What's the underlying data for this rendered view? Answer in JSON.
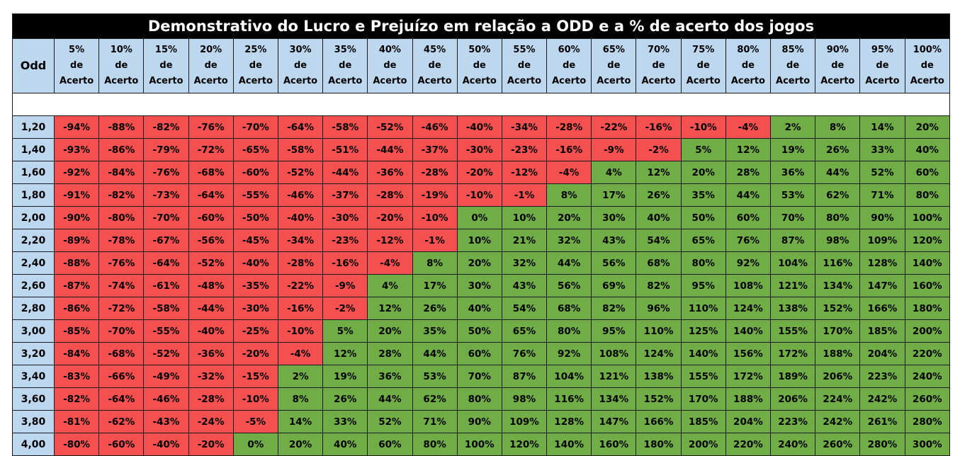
{
  "chart_data": {
    "type": "table",
    "title": "Demonstrativo do Lucro e Prejuízo em relação a ODD e a % de acerto dos jogos",
    "row_header_label": "Odd",
    "column_header_word_1": "de",
    "column_header_word_2": "Acerto",
    "columns": [
      "5%",
      "10%",
      "15%",
      "20%",
      "25%",
      "30%",
      "35%",
      "40%",
      "45%",
      "50%",
      "55%",
      "60%",
      "65%",
      "70%",
      "75%",
      "80%",
      "85%",
      "90%",
      "95%",
      "100%"
    ],
    "rows": [
      {
        "odd": "1,20",
        "values": [
          "-94%",
          "-88%",
          "-82%",
          "-76%",
          "-70%",
          "-64%",
          "-58%",
          "-52%",
          "-46%",
          "-40%",
          "-34%",
          "-28%",
          "-22%",
          "-16%",
          "-10%",
          "-4%",
          "2%",
          "8%",
          "14%",
          "20%"
        ]
      },
      {
        "odd": "1,40",
        "values": [
          "-93%",
          "-86%",
          "-79%",
          "-72%",
          "-65%",
          "-58%",
          "-51%",
          "-44%",
          "-37%",
          "-30%",
          "-23%",
          "-16%",
          "-9%",
          "-2%",
          "5%",
          "12%",
          "19%",
          "26%",
          "33%",
          "40%"
        ]
      },
      {
        "odd": "1,60",
        "values": [
          "-92%",
          "-84%",
          "-76%",
          "-68%",
          "-60%",
          "-52%",
          "-44%",
          "-36%",
          "-28%",
          "-20%",
          "-12%",
          "-4%",
          "4%",
          "12%",
          "20%",
          "28%",
          "36%",
          "44%",
          "52%",
          "60%"
        ]
      },
      {
        "odd": "1,80",
        "values": [
          "-91%",
          "-82%",
          "-73%",
          "-64%",
          "-55%",
          "-46%",
          "-37%",
          "-28%",
          "-19%",
          "-10%",
          "-1%",
          "8%",
          "17%",
          "26%",
          "35%",
          "44%",
          "53%",
          "62%",
          "71%",
          "80%"
        ]
      },
      {
        "odd": "2,00",
        "values": [
          "-90%",
          "-80%",
          "-70%",
          "-60%",
          "-50%",
          "-40%",
          "-30%",
          "-20%",
          "-10%",
          "0%",
          "10%",
          "20%",
          "30%",
          "40%",
          "50%",
          "60%",
          "70%",
          "80%",
          "90%",
          "100%"
        ]
      },
      {
        "odd": "2,20",
        "values": [
          "-89%",
          "-78%",
          "-67%",
          "-56%",
          "-45%",
          "-34%",
          "-23%",
          "-12%",
          "-1%",
          "10%",
          "21%",
          "32%",
          "43%",
          "54%",
          "65%",
          "76%",
          "87%",
          "98%",
          "109%",
          "120%"
        ]
      },
      {
        "odd": "2,40",
        "values": [
          "-88%",
          "-76%",
          "-64%",
          "-52%",
          "-40%",
          "-28%",
          "-16%",
          "-4%",
          "8%",
          "20%",
          "32%",
          "44%",
          "56%",
          "68%",
          "80%",
          "92%",
          "104%",
          "116%",
          "128%",
          "140%"
        ]
      },
      {
        "odd": "2,60",
        "values": [
          "-87%",
          "-74%",
          "-61%",
          "-48%",
          "-35%",
          "-22%",
          "-9%",
          "4%",
          "17%",
          "30%",
          "43%",
          "56%",
          "69%",
          "82%",
          "95%",
          "108%",
          "121%",
          "134%",
          "147%",
          "160%"
        ]
      },
      {
        "odd": "2,80",
        "values": [
          "-86%",
          "-72%",
          "-58%",
          "-44%",
          "-30%",
          "-16%",
          "-2%",
          "12%",
          "26%",
          "40%",
          "54%",
          "68%",
          "82%",
          "96%",
          "110%",
          "124%",
          "138%",
          "152%",
          "166%",
          "180%"
        ]
      },
      {
        "odd": "3,00",
        "values": [
          "-85%",
          "-70%",
          "-55%",
          "-40%",
          "-25%",
          "-10%",
          "5%",
          "20%",
          "35%",
          "50%",
          "65%",
          "80%",
          "95%",
          "110%",
          "125%",
          "140%",
          "155%",
          "170%",
          "185%",
          "200%"
        ]
      },
      {
        "odd": "3,20",
        "values": [
          "-84%",
          "-68%",
          "-52%",
          "-36%",
          "-20%",
          "-4%",
          "12%",
          "28%",
          "44%",
          "60%",
          "76%",
          "92%",
          "108%",
          "124%",
          "140%",
          "156%",
          "172%",
          "188%",
          "204%",
          "220%"
        ]
      },
      {
        "odd": "3,40",
        "values": [
          "-83%",
          "-66%",
          "-49%",
          "-32%",
          "-15%",
          "2%",
          "19%",
          "36%",
          "53%",
          "70%",
          "87%",
          "104%",
          "121%",
          "138%",
          "155%",
          "172%",
          "189%",
          "206%",
          "223%",
          "240%"
        ]
      },
      {
        "odd": "3,60",
        "values": [
          "-82%",
          "-64%",
          "-46%",
          "-28%",
          "-10%",
          "8%",
          "26%",
          "44%",
          "62%",
          "80%",
          "98%",
          "116%",
          "134%",
          "152%",
          "170%",
          "188%",
          "206%",
          "224%",
          "242%",
          "260%"
        ]
      },
      {
        "odd": "3,80",
        "values": [
          "-81%",
          "-62%",
          "-43%",
          "-24%",
          "-5%",
          "14%",
          "33%",
          "52%",
          "71%",
          "90%",
          "109%",
          "128%",
          "147%",
          "166%",
          "185%",
          "204%",
          "223%",
          "242%",
          "261%",
          "280%"
        ]
      },
      {
        "odd": "4,00",
        "values": [
          "-80%",
          "-60%",
          "-40%",
          "-20%",
          "0%",
          "20%",
          "40%",
          "60%",
          "80%",
          "100%",
          "120%",
          "140%",
          "160%",
          "180%",
          "200%",
          "220%",
          "240%",
          "260%",
          "280%",
          "300%"
        ]
      }
    ]
  },
  "colors": {
    "title_background": "#000000",
    "header_background": "#bdd7ee",
    "loss_cell": "#f4504f",
    "profit_cell": "#70ad47"
  }
}
